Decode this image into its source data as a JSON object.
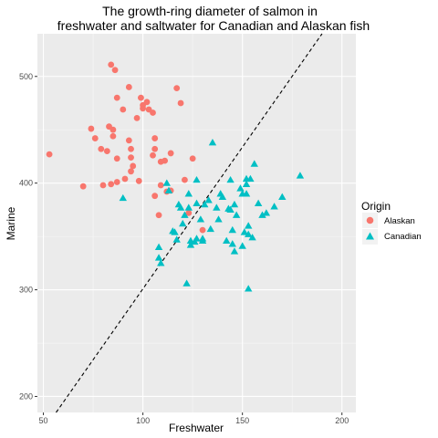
{
  "chart_data": {
    "type": "scatter",
    "title_lines": [
      "The growth-ring diameter of salmon in",
      "freshwater and saltwater for Canadian and Alaskan fish"
    ],
    "xlabel": "Freshwater",
    "ylabel": "Marine",
    "xlim": [
      47,
      207
    ],
    "ylim": [
      185,
      540
    ],
    "x_ticks": [
      50,
      100,
      150,
      200
    ],
    "y_ticks": [
      200,
      300,
      400,
      500
    ],
    "grid": true,
    "reference_line": {
      "style": "dashed",
      "points": [
        [
          50,
          168
        ],
        [
          190,
          540
        ]
      ]
    },
    "legend": {
      "title": "Origin",
      "position": "right",
      "entries": [
        {
          "label": "Alaskan",
          "color": "#F8766D",
          "shape": "circle"
        },
        {
          "label": "Canadian",
          "color": "#00BFC4",
          "shape": "triangle"
        }
      ]
    },
    "series": [
      {
        "name": "Alaskan",
        "color": "#F8766D",
        "shape": "circle",
        "points": [
          [
            53,
            427
          ],
          [
            70,
            397
          ],
          [
            74,
            451
          ],
          [
            76,
            442
          ],
          [
            79,
            432
          ],
          [
            80,
            398
          ],
          [
            82,
            430
          ],
          [
            83,
            453
          ],
          [
            84,
            511
          ],
          [
            84,
            399
          ],
          [
            85,
            450
          ],
          [
            85,
            444
          ],
          [
            86,
            506
          ],
          [
            87,
            480
          ],
          [
            87,
            423
          ],
          [
            87,
            401
          ],
          [
            90,
            469
          ],
          [
            91,
            404
          ],
          [
            93,
            490
          ],
          [
            93,
            440
          ],
          [
            94,
            432
          ],
          [
            94,
            424
          ],
          [
            94,
            411
          ],
          [
            95,
            416
          ],
          [
            97,
            461
          ],
          [
            98,
            402
          ],
          [
            99,
            480
          ],
          [
            100,
            473
          ],
          [
            100,
            470
          ],
          [
            102,
            476
          ],
          [
            103,
            469
          ],
          [
            105,
            466
          ],
          [
            105,
            426
          ],
          [
            106,
            432
          ],
          [
            106,
            442
          ],
          [
            106,
            388
          ],
          [
            108,
            370
          ],
          [
            109,
            420
          ],
          [
            109,
            398
          ],
          [
            111,
            421
          ],
          [
            112,
            392
          ],
          [
            114,
            428
          ],
          [
            114,
            393
          ],
          [
            117,
            489
          ],
          [
            119,
            475
          ],
          [
            121,
            403
          ],
          [
            123,
            372
          ],
          [
            125,
            423
          ],
          [
            130,
            356
          ]
        ]
      },
      {
        "name": "Canadian",
        "color": "#00BFC4",
        "shape": "triangle",
        "points": [
          [
            90,
            386
          ],
          [
            108,
            340
          ],
          [
            108,
            330
          ],
          [
            109,
            325
          ],
          [
            112,
            400
          ],
          [
            113,
            393
          ],
          [
            115,
            355
          ],
          [
            116,
            354
          ],
          [
            117,
            347
          ],
          [
            118,
            380
          ],
          [
            119,
            377
          ],
          [
            120,
            362
          ],
          [
            121,
            370
          ],
          [
            122,
            306
          ],
          [
            123,
            390
          ],
          [
            123,
            377
          ],
          [
            124,
            346
          ],
          [
            124,
            342
          ],
          [
            126,
            345
          ],
          [
            127,
            348
          ],
          [
            127,
            403
          ],
          [
            127,
            381
          ],
          [
            129,
            366
          ],
          [
            130,
            348
          ],
          [
            130,
            346
          ],
          [
            131,
            380
          ],
          [
            133,
            384
          ],
          [
            134,
            357
          ],
          [
            135,
            438
          ],
          [
            137,
            377
          ],
          [
            138,
            366
          ],
          [
            139,
            390
          ],
          [
            140,
            387
          ],
          [
            142,
            346
          ],
          [
            143,
            376
          ],
          [
            144,
            403
          ],
          [
            144,
            375
          ],
          [
            145,
            356
          ],
          [
            145,
            343
          ],
          [
            146,
            336
          ],
          [
            146,
            380
          ],
          [
            147,
            370
          ],
          [
            149,
            395
          ],
          [
            150,
            390
          ],
          [
            150,
            341
          ],
          [
            151,
            354
          ],
          [
            152,
            404
          ],
          [
            152,
            399
          ],
          [
            152,
            390
          ],
          [
            153,
            352
          ],
          [
            153,
            360
          ],
          [
            153,
            301
          ],
          [
            154,
            404
          ],
          [
            155,
            349
          ],
          [
            156,
            418
          ],
          [
            158,
            381
          ],
          [
            160,
            370
          ],
          [
            162,
            372
          ],
          [
            166,
            378
          ],
          [
            170,
            387
          ],
          [
            179,
            407
          ]
        ]
      }
    ]
  }
}
